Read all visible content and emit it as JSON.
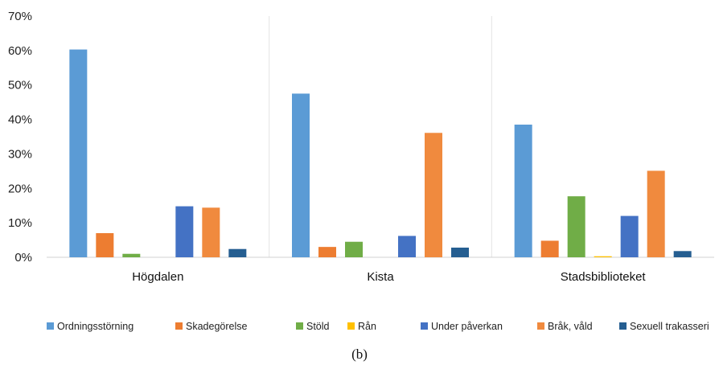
{
  "caption": "(b)",
  "chart_data": {
    "type": "bar",
    "categories": [
      "Högdalen",
      "Kista",
      "Stadsbiblioteket"
    ],
    "ylim": [
      0,
      70
    ],
    "yticks": [
      0,
      10,
      20,
      30,
      40,
      50,
      60,
      70
    ],
    "y_tick_labels": [
      "0%",
      "10%",
      "20%",
      "30%",
      "40%",
      "50%",
      "60%",
      "70%"
    ],
    "grid": "vertical separators between categories",
    "legend_position": "bottom",
    "series": [
      {
        "name": "Ordningsstörning",
        "color": "#5B9BD5",
        "values": [
          60.3,
          47.5,
          38.5
        ]
      },
      {
        "name": "Skadegörelse",
        "color": "#ED7D31",
        "values": [
          7.0,
          3.0,
          4.8
        ]
      },
      {
        "name": "Stöld",
        "color": "#70AD47",
        "values": [
          1.0,
          4.5,
          17.7
        ]
      },
      {
        "name": "Rån",
        "color": "#FFC000",
        "values": [
          0.0,
          0.0,
          0.3
        ]
      },
      {
        "name": "Under påverkan",
        "color": "#4472C4",
        "values": [
          14.8,
          6.2,
          12.0
        ]
      },
      {
        "name": "Bråk, våld",
        "color": "#F08A3E",
        "values": [
          14.4,
          36.1,
          25.1
        ]
      },
      {
        "name": "Sexuell trakasseri",
        "color": "#255E91",
        "values": [
          2.4,
          2.8,
          1.8
        ]
      }
    ]
  }
}
